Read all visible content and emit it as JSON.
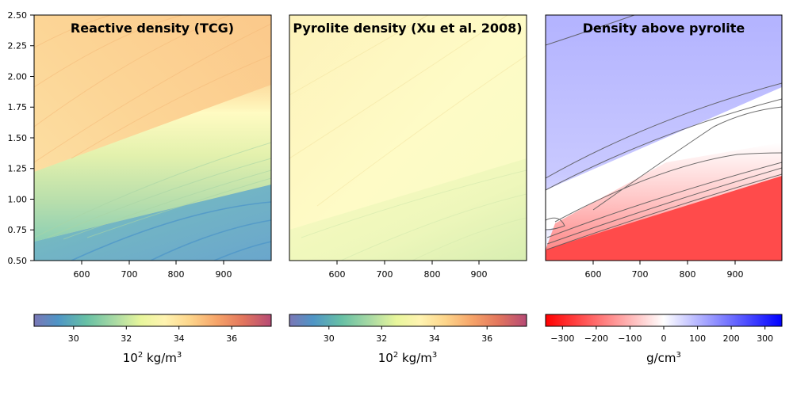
{
  "chart_data": [
    {
      "type": "heatmap",
      "title": "Reactive density (TCG)",
      "xlim": [
        500,
        1000
      ],
      "ylim": [
        0.5,
        2.5
      ],
      "xticks": [
        600,
        700,
        800,
        900
      ],
      "yticks": [
        0.5,
        0.75,
        1.0,
        1.25,
        1.5,
        1.75,
        2.0,
        2.25,
        2.5
      ],
      "colormap": "Spectral_r",
      "colorbar": {
        "label_base": "10",
        "label_exp": "2",
        "label_unit": "kg/m",
        "label_unit_exp": "3",
        "range": [
          28.5,
          37.5
        ],
        "ticks": [
          30,
          32,
          34,
          36
        ]
      },
      "field": {
        "low_value": 29.8,
        "high_value": 35.0,
        "transition_band": [
          [
            500,
            0.66,
            1.2
          ],
          [
            1000,
            1.15,
            1.92
          ]
        ]
      }
    },
    {
      "type": "heatmap",
      "title": "Pyrolite density (Xu et al. 2008)",
      "xlim": [
        500,
        1000
      ],
      "ylim": [
        0.5,
        2.5
      ],
      "xticks": [
        600,
        700,
        800,
        900
      ],
      "colormap": "Spectral_r",
      "colorbar": {
        "label_base": "10",
        "label_exp": "2",
        "label_unit": "kg/m",
        "label_unit_exp": "3",
        "range": [
          28.5,
          37.5
        ],
        "ticks": [
          30,
          32,
          34,
          36
        ]
      },
      "field": {
        "min_value": 31.6,
        "max_value": 34.0
      }
    },
    {
      "type": "heatmap",
      "title": "Density above pyrolite",
      "xlim": [
        500,
        1000
      ],
      "ylim": [
        0.5,
        2.5
      ],
      "xticks": [
        600,
        700,
        800,
        900
      ],
      "colormap": "bwr_r",
      "colorbar": {
        "label_unit": "g/cm",
        "label_unit_exp": "3",
        "range": [
          -350,
          350
        ],
        "ticks": [
          -300,
          -200,
          -100,
          0,
          100,
          200,
          300
        ],
        "tick_labels": [
          "−300",
          "−200",
          "−100",
          "0",
          "100",
          "200",
          "300"
        ]
      },
      "field": {
        "positive_value": 210,
        "negative_value": -340
      }
    }
  ],
  "colors": {
    "positive": "#0000ff",
    "negative": "#ff0000",
    "contour": "#555555"
  }
}
